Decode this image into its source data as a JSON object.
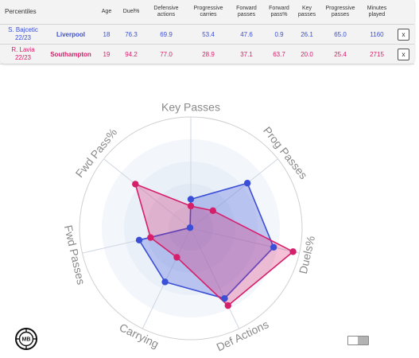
{
  "table": {
    "headers": [
      "Percentiles",
      "",
      "Age",
      "Duel%",
      "Defensive actions",
      "Progressive carries",
      "Forward passes",
      "Forward pass%",
      "Key passes",
      "Progressive passes",
      "Minutes played",
      ""
    ],
    "rows": [
      {
        "player": "S. Bajcetic",
        "season": "22/23",
        "team": "Liverpool",
        "age": "18",
        "duel_pct": "76.3",
        "defensive_actions": "69.9",
        "progressive_carries": "53.4",
        "forward_passes": "47.6",
        "forward_pass_pct": "0.9",
        "key_passes": "26.1",
        "progressive_passes": "65.0",
        "minutes_played": "1160",
        "remove": "x"
      },
      {
        "player": "R. Lavia",
        "season": "22/23",
        "team": "Southampton",
        "age": "19",
        "duel_pct": "94.2",
        "defensive_actions": "77.0",
        "progressive_carries": "28.9",
        "forward_passes": "37.1",
        "forward_pass_pct": "63.7",
        "key_passes": "20.0",
        "progressive_passes": "25.4",
        "minutes_played": "2715",
        "remove": "x"
      }
    ]
  },
  "chart_data": {
    "type": "radar",
    "axes": [
      "Key Passes",
      "Prog Passes",
      "Duels%",
      "Def Actions",
      "Carrying",
      "Fwd Passes",
      "Fwd Pass%"
    ],
    "range": [
      0,
      100
    ],
    "series": [
      {
        "name": "S. Bajcetic",
        "color": "#3b4fd6",
        "values": [
          26.1,
          65.0,
          76.3,
          69.9,
          53.4,
          47.6,
          0.9
        ]
      },
      {
        "name": "R. Lavia",
        "color": "#d61f6a",
        "values": [
          20.0,
          25.4,
          94.2,
          77.0,
          28.9,
          37.1,
          63.7
        ]
      }
    ]
  },
  "logo_text": "MB",
  "colors": {
    "bajcetic": "#3b4fd6",
    "lavia": "#d61f6a",
    "grid": "#d0d0d0",
    "label": "#8a8a8a"
  }
}
